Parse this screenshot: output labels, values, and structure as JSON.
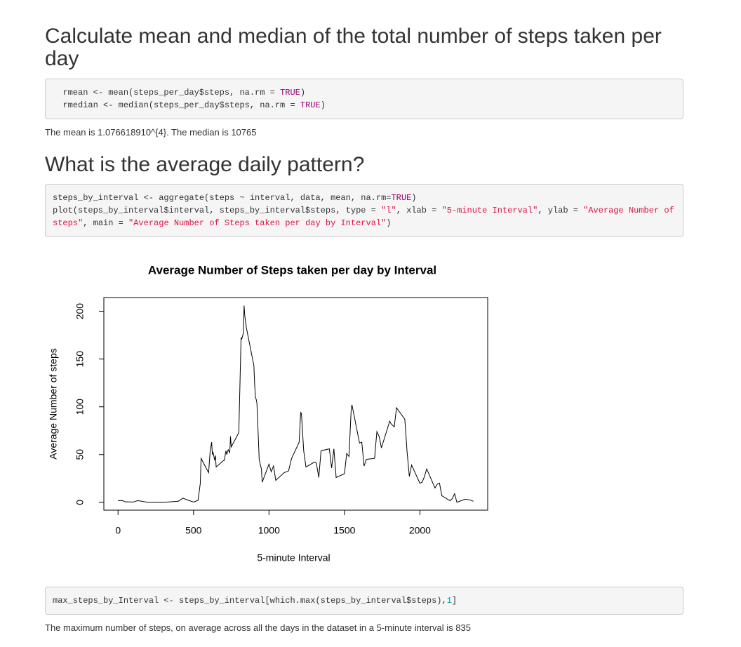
{
  "sections": [
    {
      "heading": "Calculate mean and median of the total number of steps taken per day",
      "code": [
        [
          "  rmean <- mean(steps_per_day$steps, na.rm = ",
          "TRUE",
          ")"
        ],
        [
          "  rmedian <- median(steps_per_day$steps, na.rm = ",
          "TRUE",
          ")"
        ]
      ],
      "text": "The mean is 1.076618910^{4}. The median is 10765"
    },
    {
      "heading": "What is the average daily pattern?",
      "code": [
        [
          "steps_by_interval <- aggregate(steps ~ interval, data, mean, na.rm=",
          "TRUE",
          ")"
        ],
        [
          "plot(steps_by_interval$interval, steps_by_interval$steps, type = ",
          "\"l\"",
          ", xlab = ",
          "\"5-minute Interval\"",
          ", ylab = ",
          "\"Average Number of steps\"",
          ", main = ",
          "\"Average Number of Steps taken per day by Interval\"",
          ")"
        ]
      ]
    }
  ],
  "chart_data": {
    "type": "line",
    "title": "Average Number of Steps taken per day by Interval",
    "xlabel": "5-minute Interval",
    "ylabel": "Average Number of steps",
    "x": [
      0,
      25,
      50,
      100,
      130,
      200,
      230,
      300,
      330,
      400,
      430,
      450,
      500,
      530,
      545,
      550,
      600,
      610,
      620,
      625,
      630,
      640,
      645,
      650,
      700,
      705,
      710,
      715,
      720,
      730,
      740,
      745,
      750,
      800,
      815,
      820,
      830,
      835,
      840,
      850,
      900,
      905,
      910,
      915,
      920,
      930,
      935,
      945,
      950,
      955,
      1000,
      1015,
      1030,
      1045,
      1100,
      1130,
      1145,
      1150,
      1200,
      1210,
      1215,
      1230,
      1245,
      1300,
      1310,
      1315,
      1330,
      1345,
      1400,
      1415,
      1430,
      1445,
      1500,
      1515,
      1530,
      1545,
      1550,
      1600,
      1615,
      1630,
      1645,
      1700,
      1705,
      1715,
      1730,
      1745,
      1800,
      1810,
      1830,
      1845,
      1900,
      1915,
      1930,
      1945,
      2000,
      2015,
      2030,
      2045,
      2100,
      2115,
      2130,
      2145,
      2200,
      2215,
      2230,
      2245,
      2300,
      2330,
      2355
    ],
    "series": [
      {
        "name": "steps",
        "color": "#000000",
        "values": [
          1.7,
          2,
          0.5,
          0.3,
          1.8,
          0,
          0,
          0,
          0.3,
          1.2,
          4.4,
          3,
          0.3,
          2.1,
          20,
          46,
          31,
          53,
          63,
          50,
          52,
          44,
          49,
          37,
          44,
          44,
          50,
          54,
          50,
          55,
          52,
          69,
          58,
          73,
          172,
          171,
          177,
          206,
          195,
          183,
          143,
          124,
          110,
          108,
          104,
          66,
          45,
          38,
          35,
          21,
          40,
          32,
          38,
          23,
          31,
          33,
          43,
          46,
          63,
          94,
          93,
          54,
          37,
          42,
          42,
          40,
          26,
          54,
          56,
          36,
          56,
          26,
          30,
          51,
          48,
          98,
          102,
          62,
          63,
          38,
          45,
          46,
          56,
          74,
          69,
          57,
          85,
          82,
          79,
          99,
          87,
          53,
          27,
          39,
          20,
          21,
          27,
          35,
          15,
          19,
          20,
          7,
          1.6,
          4,
          9,
          0.1,
          3.3,
          2.6,
          1.1
        ]
      }
    ],
    "xlim": [
      -94.2,
      2449.2
    ],
    "ylim": [
      -8.2,
      214.4
    ],
    "xticks": [
      0,
      500,
      1000,
      1500,
      2000
    ],
    "yticks": [
      0,
      50,
      100,
      150,
      200
    ]
  },
  "footer": {
    "code": [
      [
        "max_steps_by_Interval <- steps_by_interval[which.max(steps_by_interval$steps),",
        "1",
        "]"
      ]
    ],
    "text": "The maximum number of steps, on average across all the days in the dataset in a 5-minute interval is 835"
  }
}
